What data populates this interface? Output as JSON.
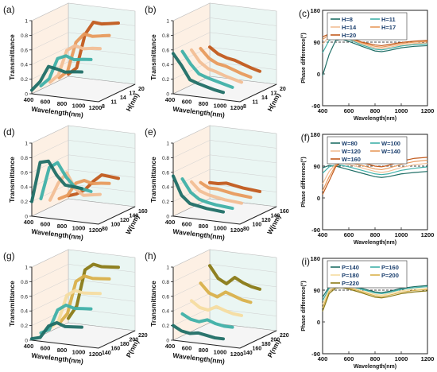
{
  "figure": {
    "panels_3d": [
      {
        "label": "(a)",
        "ylabel": "Transmittance",
        "xlabel": "Wavelength(nm)",
        "depth_label": "H(nm)",
        "x_ticks": [
          "400",
          "600",
          "800",
          "1000",
          "1200"
        ],
        "depth_ticks": [
          "8",
          "11",
          "14",
          "17",
          "20"
        ],
        "y_ticks": [
          "0",
          "0.2",
          "0.4",
          "0.6",
          "0.8",
          "1"
        ]
      },
      {
        "label": "(b)",
        "ylabel": "Transmittance",
        "xlabel": "Wavelength(nm)",
        "depth_label": "H(nm)",
        "x_ticks": [
          "400",
          "600",
          "800",
          "1000",
          "1200"
        ],
        "depth_ticks": [
          "8",
          "11",
          "14",
          "17",
          "20"
        ],
        "y_ticks": [
          "0",
          "0.2",
          "0.4",
          "0.6",
          "0.8",
          "1"
        ]
      },
      {
        "label": "(d)",
        "ylabel": "Transmittance",
        "xlabel": "Wavelength(nm)",
        "depth_label": "W(nm)",
        "x_ticks": [
          "400",
          "600",
          "800",
          "1000",
          "1200"
        ],
        "depth_ticks": [
          "80",
          "100",
          "120",
          "140",
          "160"
        ],
        "y_ticks": [
          "0",
          "0.2",
          "0.4",
          "0.6",
          "0.8",
          "1"
        ]
      },
      {
        "label": "(e)",
        "ylabel": "Transmittance",
        "xlabel": "Wavelength(nm)",
        "depth_label": "W(nm)",
        "x_ticks": [
          "400",
          "600",
          "800",
          "1000",
          "1200"
        ],
        "depth_ticks": [
          "80",
          "100",
          "120",
          "140",
          "160"
        ],
        "y_ticks": [
          "0",
          "0.2",
          "0.4",
          "0.6",
          "0.8",
          "1"
        ]
      },
      {
        "label": "(g)",
        "ylabel": "Transmittance",
        "xlabel": "Wavelength(nm)",
        "depth_label": "P(nm)",
        "x_ticks": [
          "400",
          "600",
          "800",
          "1000",
          "1200"
        ],
        "depth_ticks": [
          "140",
          "160",
          "180",
          "200",
          "220"
        ],
        "y_ticks": [
          "0",
          "0.2",
          "0.4",
          "0.6",
          "0.8",
          "1"
        ]
      },
      {
        "label": "(h)",
        "ylabel": "Transmittance",
        "xlabel": "Wavelength(nm)",
        "depth_label": "P(nm)",
        "x_ticks": [
          "400",
          "600",
          "800",
          "1000",
          "1200"
        ],
        "depth_ticks": [
          "140",
          "160",
          "180",
          "200",
          "220"
        ],
        "y_ticks": [
          "0",
          "0.2",
          "0.4",
          "0.6",
          "0.8",
          "1"
        ]
      }
    ],
    "panels_2d": [
      {
        "label": "(c)",
        "ylabel": "Phase difference(°)",
        "xlabel": "Wavelength(nm)",
        "x_ticks": [
          "400",
          "600",
          "800",
          "1000",
          "1200"
        ],
        "y_ticks": [
          "-90",
          "0",
          "90",
          "180"
        ],
        "legend_entries": [
          "H=8",
          "H=11",
          "H=14",
          "H=17",
          "H=20"
        ]
      },
      {
        "label": "(f)",
        "ylabel": "Phase difference(°)",
        "xlabel": "Wavelength(nm)",
        "x_ticks": [
          "400",
          "600",
          "800",
          "1000",
          "1200"
        ],
        "y_ticks": [
          "-90",
          "0",
          "90",
          "180"
        ],
        "legend_entries": [
          "W=80",
          "W=100",
          "W=120",
          "W=140",
          "W=160"
        ]
      },
      {
        "label": "(i)",
        "ylabel": "Phase difference(°)",
        "xlabel": "Wavelength(nm)",
        "x_ticks": [
          "400",
          "600",
          "800",
          "1000",
          "1200"
        ],
        "y_ticks": [
          "-90",
          "0",
          "90",
          "180"
        ],
        "legend_entries": [
          "P=140",
          "P=160",
          "P=180",
          "P=200",
          "P=220"
        ]
      }
    ]
  },
  "colors": {
    "set1": [
      "#1f6e66",
      "#3fb0a8",
      "#f2be95",
      "#e89a5c",
      "#c25a1c"
    ],
    "set2": [
      "#1f6e66",
      "#3fb0a8",
      "#f2be95",
      "#e89a5c",
      "#c25a1c"
    ],
    "set3": [
      "#1f6e66",
      "#3fb0a8",
      "#f5dca0",
      "#d9b04a",
      "#8a7a16"
    ],
    "ref_line": "#000000",
    "back_wall": "#fdf0e4",
    "right_wall": "#eaf6f3",
    "floor": "#f5f5f5"
  },
  "chart_data": [
    {
      "type": "line",
      "panel": "(a)",
      "title": "",
      "xlabel": "Wavelength(nm)",
      "ylabel": "Transmittance",
      "zlabel": "H(nm)",
      "xlim": [
        400,
        1200
      ],
      "ylim": [
        0,
        1
      ],
      "zlim": [
        8,
        20
      ],
      "x": [
        400,
        500,
        600,
        700,
        800,
        900,
        1000
      ],
      "series": [
        {
          "z": 8,
          "values": [
            0.05,
            0.18,
            0.4,
            0.38,
            0.35,
            0.37,
            0.38
          ]
        },
        {
          "z": 11,
          "values": [
            0.05,
            0.16,
            0.45,
            0.5,
            0.46,
            0.48,
            0.49
          ]
        },
        {
          "z": 14,
          "values": [
            0.04,
            0.15,
            0.5,
            0.58,
            0.55,
            0.57,
            0.58
          ]
        },
        {
          "z": 17,
          "values": [
            0.04,
            0.14,
            0.55,
            0.68,
            0.66,
            0.68,
            0.7
          ]
        },
        {
          "z": 20,
          "values": [
            0.03,
            0.13,
            0.6,
            0.78,
            0.77,
            0.79,
            0.81
          ]
        }
      ]
    },
    {
      "type": "line",
      "panel": "(b)",
      "title": "",
      "xlabel": "Wavelength(nm)",
      "ylabel": "Transmittance",
      "zlabel": "H(nm)",
      "xlim": [
        400,
        1200
      ],
      "ylim": [
        0,
        1
      ],
      "zlim": [
        8,
        20
      ],
      "x": [
        400,
        500,
        600,
        700,
        800,
        900,
        1000
      ],
      "series": [
        {
          "z": 8,
          "values": [
            0.55,
            0.4,
            0.22,
            0.18,
            0.15,
            0.12,
            0.1
          ]
        },
        {
          "z": 11,
          "values": [
            0.52,
            0.36,
            0.24,
            0.2,
            0.17,
            0.14,
            0.11
          ]
        },
        {
          "z": 14,
          "values": [
            0.48,
            0.33,
            0.25,
            0.22,
            0.18,
            0.15,
            0.12
          ]
        },
        {
          "z": 17,
          "values": [
            0.44,
            0.32,
            0.26,
            0.24,
            0.2,
            0.16,
            0.13
          ]
        },
        {
          "z": 20,
          "values": [
            0.4,
            0.32,
            0.28,
            0.26,
            0.22,
            0.18,
            0.15
          ]
        }
      ]
    },
    {
      "type": "line",
      "panel": "(d)",
      "title": "",
      "xlabel": "Wavelength(nm)",
      "ylabel": "Transmittance",
      "zlabel": "W(nm)",
      "xlim": [
        400,
        1200
      ],
      "ylim": [
        0,
        1
      ],
      "zlim": [
        80,
        160
      ],
      "x": [
        400,
        500,
        600,
        700,
        800,
        900,
        1000
      ],
      "series": [
        {
          "z": 80,
          "values": [
            0.2,
            0.75,
            0.78,
            0.6,
            0.48,
            0.47,
            0.46
          ]
        },
        {
          "z": 100,
          "values": [
            0.18,
            0.62,
            0.7,
            0.52,
            0.4,
            0.38,
            0.36
          ]
        },
        {
          "z": 120,
          "values": [
            0.1,
            0.35,
            0.5,
            0.3,
            0.22,
            0.24,
            0.26
          ]
        },
        {
          "z": 140,
          "values": [
            0.06,
            0.12,
            0.3,
            0.35,
            0.32,
            0.34,
            0.35
          ]
        },
        {
          "z": 160,
          "values": [
            0.04,
            0.08,
            0.15,
            0.28,
            0.38,
            0.37,
            0.36
          ]
        }
      ]
    },
    {
      "type": "line",
      "panel": "(e)",
      "title": "",
      "xlabel": "Wavelength(nm)",
      "ylabel": "Transmittance",
      "zlabel": "W(nm)",
      "xlim": [
        400,
        1200
      ],
      "ylim": [
        0,
        1
      ],
      "zlim": [
        80,
        160
      ],
      "x": [
        400,
        500,
        600,
        700,
        800,
        900,
        1000
      ],
      "series": [
        {
          "z": 80,
          "values": [
            0.55,
            0.3,
            0.2,
            0.18,
            0.16,
            0.15,
            0.14
          ]
        },
        {
          "z": 100,
          "values": [
            0.45,
            0.28,
            0.2,
            0.17,
            0.15,
            0.14,
            0.13
          ]
        },
        {
          "z": 120,
          "values": [
            0.35,
            0.24,
            0.2,
            0.18,
            0.16,
            0.15,
            0.14
          ]
        },
        {
          "z": 140,
          "values": [
            0.28,
            0.22,
            0.22,
            0.2,
            0.18,
            0.17,
            0.16
          ]
        },
        {
          "z": 160,
          "values": [
            0.22,
            0.22,
            0.24,
            0.22,
            0.2,
            0.19,
            0.18
          ]
        }
      ]
    },
    {
      "type": "line",
      "panel": "(g)",
      "title": "",
      "xlabel": "Wavelength(nm)",
      "ylabel": "Transmittance",
      "zlabel": "P(nm)",
      "xlim": [
        400,
        1200
      ],
      "ylim": [
        0,
        1
      ],
      "zlim": [
        140,
        220
      ],
      "x": [
        400,
        500,
        600,
        700,
        800,
        900,
        1000
      ],
      "series": [
        {
          "z": 140,
          "values": [
            0.02,
            0.05,
            0.22,
            0.28,
            0.24,
            0.25,
            0.26
          ]
        },
        {
          "z": 160,
          "values": [
            0.04,
            0.1,
            0.38,
            0.46,
            0.43,
            0.44,
            0.45
          ]
        },
        {
          "z": 180,
          "values": [
            0.05,
            0.15,
            0.52,
            0.6,
            0.58,
            0.59,
            0.6
          ]
        },
        {
          "z": 200,
          "values": [
            0.05,
            0.2,
            0.65,
            0.74,
            0.72,
            0.73,
            0.74
          ]
        },
        {
          "z": 220,
          "values": [
            0.06,
            0.24,
            0.75,
            0.84,
            0.82,
            0.83,
            0.84
          ]
        }
      ]
    },
    {
      "type": "line",
      "panel": "(h)",
      "title": "",
      "xlabel": "Wavelength(nm)",
      "ylabel": "Transmittance",
      "zlabel": "P(nm)",
      "xlim": [
        400,
        1200
      ],
      "ylim": [
        0,
        1
      ],
      "zlim": [
        140,
        220
      ],
      "x": [
        400,
        500,
        600,
        700,
        800,
        900,
        1000
      ],
      "series": [
        {
          "z": 140,
          "values": [
            0.2,
            0.14,
            0.12,
            0.14,
            0.12,
            0.1,
            0.1
          ]
        },
        {
          "z": 160,
          "values": [
            0.3,
            0.24,
            0.22,
            0.26,
            0.22,
            0.2,
            0.2
          ]
        },
        {
          "z": 180,
          "values": [
            0.42,
            0.34,
            0.32,
            0.38,
            0.34,
            0.31,
            0.3
          ]
        },
        {
          "z": 200,
          "values": [
            0.6,
            0.48,
            0.44,
            0.52,
            0.48,
            0.44,
            0.42
          ]
        },
        {
          "z": 220,
          "values": [
            0.78,
            0.62,
            0.56,
            0.66,
            0.6,
            0.56,
            0.54
          ]
        }
      ]
    },
    {
      "type": "line",
      "panel": "(c)",
      "title": "",
      "xlabel": "Wavelength(nm)",
      "ylabel": "Phase difference(°)",
      "xlim": [
        400,
        1200
      ],
      "ylim": [
        -90,
        180
      ],
      "reference_line": 90,
      "x": [
        400,
        450,
        500,
        550,
        600,
        700,
        800,
        850,
        900,
        1000,
        1100,
        1200
      ],
      "series": [
        {
          "name": "H=8",
          "values": [
            -5,
            55,
            95,
            98,
            92,
            78,
            65,
            63,
            66,
            74,
            78,
            80
          ]
        },
        {
          "name": "H=11",
          "values": [
            60,
            95,
            105,
            104,
            98,
            82,
            70,
            68,
            71,
            79,
            83,
            85
          ]
        },
        {
          "name": "H=14",
          "values": [
            85,
            105,
            108,
            106,
            100,
            85,
            74,
            72,
            75,
            82,
            86,
            88
          ]
        },
        {
          "name": "H=17",
          "values": [
            98,
            110,
            111,
            108,
            102,
            88,
            78,
            76,
            79,
            86,
            90,
            92
          ]
        },
        {
          "name": "H=20",
          "values": [
            105,
            113,
            113,
            110,
            104,
            90,
            82,
            80,
            83,
            89,
            93,
            95
          ]
        }
      ]
    },
    {
      "type": "line",
      "panel": "(f)",
      "title": "",
      "xlabel": "Wavelength(nm)",
      "ylabel": "Phase difference(°)",
      "xlim": [
        400,
        1200
      ],
      "ylim": [
        -90,
        180
      ],
      "reference_line": 90,
      "x": [
        400,
        450,
        500,
        550,
        600,
        700,
        800,
        850,
        900,
        1000,
        1100,
        1200
      ],
      "series": [
        {
          "name": "W=80",
          "values": [
            85,
            92,
            90,
            85,
            80,
            70,
            60,
            58,
            60,
            68,
            72,
            75
          ]
        },
        {
          "name": "W=100",
          "values": [
            70,
            88,
            94,
            92,
            88,
            78,
            68,
            66,
            68,
            78,
            84,
            88
          ]
        },
        {
          "name": "W=120",
          "values": [
            40,
            75,
            96,
            98,
            95,
            85,
            75,
            72,
            75,
            86,
            94,
            98
          ]
        },
        {
          "name": "W=140",
          "values": [
            20,
            60,
            92,
            102,
            100,
            92,
            82,
            80,
            84,
            95,
            103,
            107
          ]
        },
        {
          "name": "W=160",
          "values": [
            10,
            48,
            88,
            105,
            106,
            100,
            90,
            88,
            92,
            104,
            112,
            115
          ]
        }
      ]
    },
    {
      "type": "line",
      "panel": "(i)",
      "title": "",
      "xlabel": "Wavelength(nm)",
      "ylabel": "Phase difference(°)",
      "xlim": [
        400,
        1200
      ],
      "ylim": [
        -90,
        180
      ],
      "reference_line": 90,
      "x": [
        400,
        450,
        500,
        550,
        600,
        700,
        800,
        850,
        900,
        1000,
        1100,
        1200
      ],
      "series": [
        {
          "name": "P=140",
          "values": [
            70,
            100,
            112,
            110,
            105,
            95,
            85,
            83,
            86,
            95,
            100,
            103
          ]
        },
        {
          "name": "P=160",
          "values": [
            60,
            95,
            108,
            107,
            102,
            92,
            82,
            80,
            83,
            92,
            97,
            100
          ]
        },
        {
          "name": "P=180",
          "values": [
            50,
            90,
            104,
            104,
            99,
            88,
            78,
            76,
            79,
            88,
            93,
            96
          ]
        },
        {
          "name": "P=200",
          "values": [
            40,
            85,
            100,
            100,
            96,
            85,
            74,
            72,
            75,
            84,
            89,
            92
          ]
        },
        {
          "name": "P=220",
          "values": [
            30,
            80,
            96,
            97,
            93,
            82,
            70,
            68,
            71,
            80,
            85,
            88
          ]
        }
      ]
    }
  ]
}
